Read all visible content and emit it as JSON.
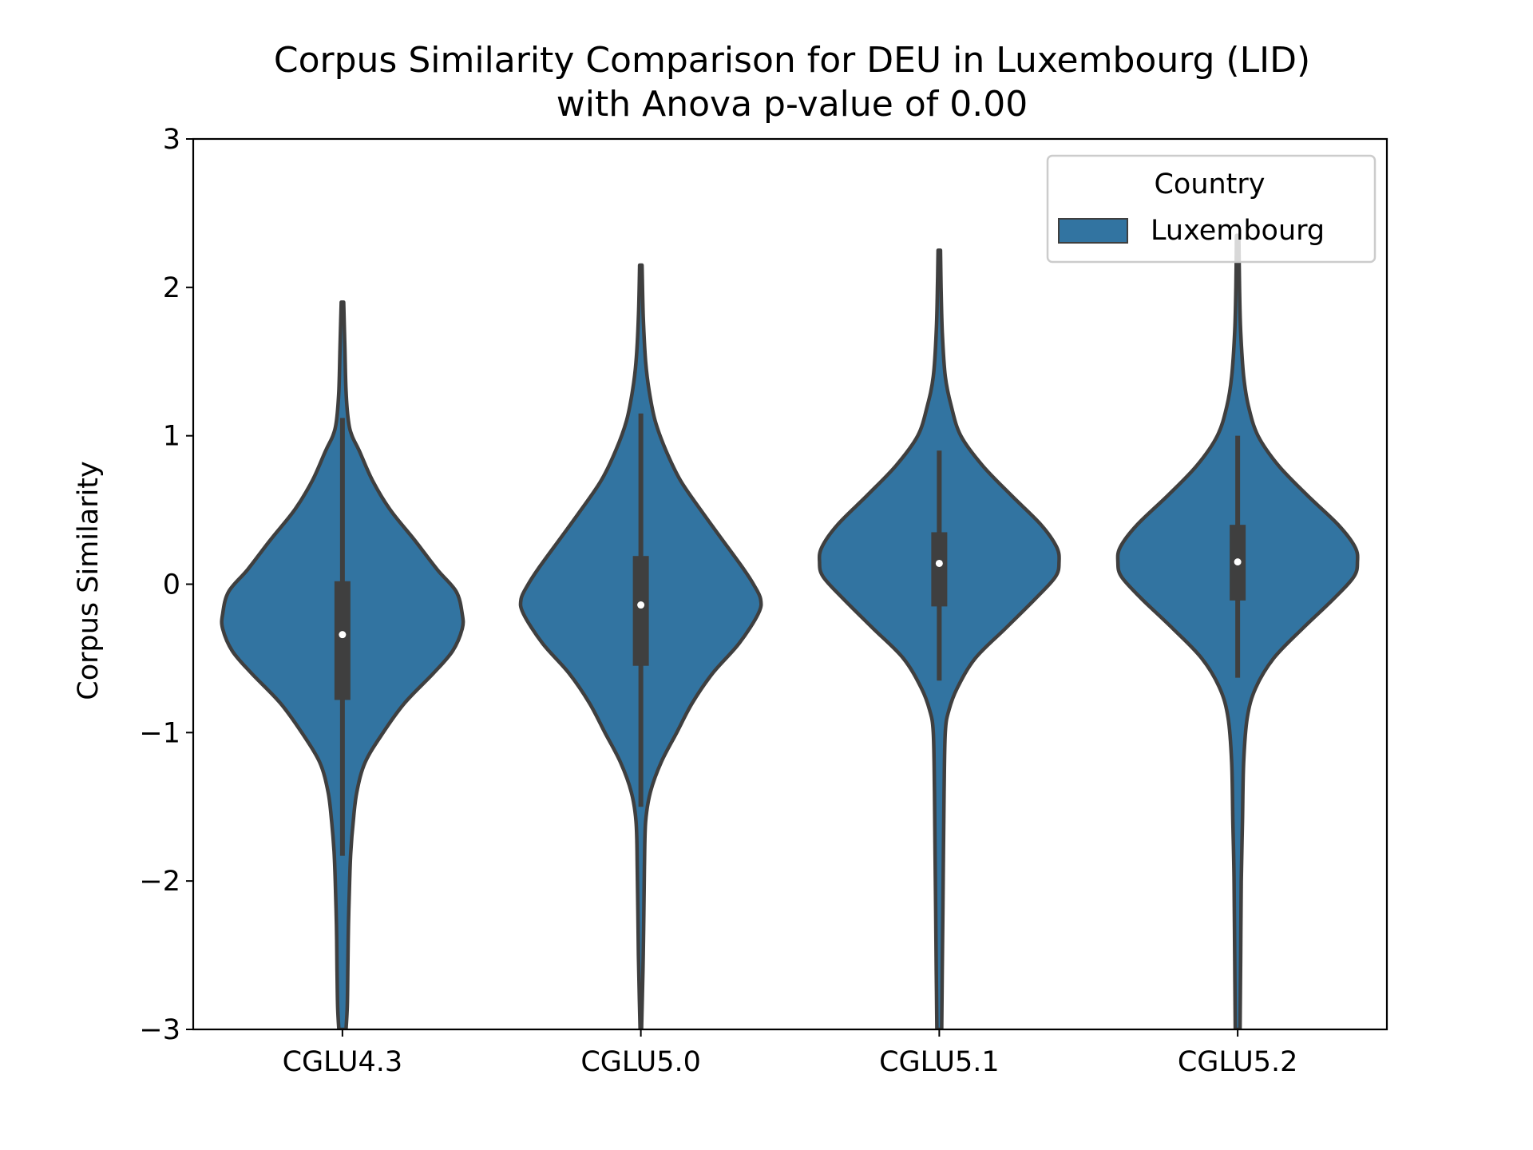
{
  "chart_data": {
    "type": "violin",
    "title": "Corpus Similarity Comparison for DEU in Luxembourg (LID)",
    "subtitle": "with Anova p-value of 0.00",
    "xlabel": "",
    "ylabel": "Corpus Similarity",
    "ylim": [
      -3,
      3
    ],
    "yticks": [
      -3,
      -2,
      -1,
      0,
      1,
      2,
      3
    ],
    "ytick_labels": [
      "−3",
      "−2",
      "−1",
      "0",
      "1",
      "2",
      "3"
    ],
    "categories": [
      "CGLU4.3",
      "CGLU5.0",
      "CGLU5.1",
      "CGLU5.2"
    ],
    "legend": {
      "title": "Country",
      "entries": [
        "Luxembourg"
      ],
      "position": "top-right"
    },
    "colors": {
      "violin": "#3274a1",
      "outline": "#3f3f3f",
      "box": "#3f3f3f",
      "median": "#ffffff"
    },
    "grid": false,
    "series": [
      {
        "name": "Luxembourg",
        "violins": [
          {
            "category": "CGLU4.3",
            "median": -0.34,
            "q1": -0.78,
            "q3": 0.02,
            "whisker_low": -1.83,
            "whisker_high": 1.12,
            "density": [
              [
                1.9,
                0.01
              ],
              [
                1.6,
                0.02
              ],
              [
                1.3,
                0.03
              ],
              [
                1.1,
                0.05
              ],
              [
                1.0,
                0.08
              ],
              [
                0.9,
                0.14
              ],
              [
                0.7,
                0.25
              ],
              [
                0.5,
                0.4
              ],
              [
                0.3,
                0.6
              ],
              [
                0.1,
                0.79
              ],
              [
                -0.05,
                0.95
              ],
              [
                -0.2,
                1.0
              ],
              [
                -0.3,
                1.0
              ],
              [
                -0.45,
                0.92
              ],
              [
                -0.6,
                0.76
              ],
              [
                -0.8,
                0.52
              ],
              [
                -1.0,
                0.34
              ],
              [
                -1.2,
                0.19
              ],
              [
                -1.4,
                0.12
              ],
              [
                -1.6,
                0.09
              ],
              [
                -1.8,
                0.07
              ],
              [
                -2.0,
                0.06
              ],
              [
                -2.3,
                0.05
              ],
              [
                -2.6,
                0.045
              ],
              [
                -2.85,
                0.04
              ],
              [
                -3.0,
                0.03
              ]
            ]
          },
          {
            "category": "CGLU5.0",
            "median": -0.14,
            "q1": -0.55,
            "q3": 0.19,
            "whisker_low": -1.5,
            "whisker_high": 1.15,
            "density": [
              [
                2.15,
                0.01
              ],
              [
                1.8,
                0.02
              ],
              [
                1.5,
                0.04
              ],
              [
                1.3,
                0.07
              ],
              [
                1.1,
                0.12
              ],
              [
                0.9,
                0.21
              ],
              [
                0.7,
                0.33
              ],
              [
                0.5,
                0.5
              ],
              [
                0.3,
                0.68
              ],
              [
                0.1,
                0.86
              ],
              [
                0.0,
                0.94
              ],
              [
                -0.1,
                1.0
              ],
              [
                -0.2,
                0.98
              ],
              [
                -0.4,
                0.82
              ],
              [
                -0.6,
                0.6
              ],
              [
                -0.8,
                0.43
              ],
              [
                -1.0,
                0.3
              ],
              [
                -1.2,
                0.17
              ],
              [
                -1.4,
                0.08
              ],
              [
                -1.6,
                0.04
              ],
              [
                -1.9,
                0.03
              ],
              [
                -2.2,
                0.025
              ],
              [
                -2.5,
                0.02
              ],
              [
                -2.8,
                0.012
              ],
              [
                -3.0,
                0.006
              ]
            ]
          },
          {
            "category": "CGLU5.1",
            "median": 0.14,
            "q1": -0.15,
            "q3": 0.35,
            "whisker_low": -0.65,
            "whisker_high": 0.9,
            "density": [
              [
                2.25,
                0.01
              ],
              [
                2.0,
                0.015
              ],
              [
                1.7,
                0.025
              ],
              [
                1.4,
                0.05
              ],
              [
                1.2,
                0.1
              ],
              [
                1.0,
                0.18
              ],
              [
                0.8,
                0.36
              ],
              [
                0.6,
                0.6
              ],
              [
                0.4,
                0.85
              ],
              [
                0.25,
                0.98
              ],
              [
                0.15,
                1.0
              ],
              [
                0.05,
                0.97
              ],
              [
                -0.1,
                0.8
              ],
              [
                -0.3,
                0.55
              ],
              [
                -0.5,
                0.3
              ],
              [
                -0.7,
                0.15
              ],
              [
                -0.85,
                0.08
              ],
              [
                -1.0,
                0.05
              ],
              [
                -1.4,
                0.04
              ],
              [
                -1.8,
                0.035
              ],
              [
                -2.2,
                0.03
              ],
              [
                -2.6,
                0.025
              ],
              [
                -3.0,
                0.02
              ]
            ]
          },
          {
            "category": "CGLU5.2",
            "median": 0.15,
            "q1": -0.11,
            "q3": 0.4,
            "whisker_low": -0.63,
            "whisker_high": 1.0,
            "density": [
              [
                2.35,
                0.01
              ],
              [
                2.0,
                0.015
              ],
              [
                1.7,
                0.025
              ],
              [
                1.4,
                0.05
              ],
              [
                1.2,
                0.09
              ],
              [
                1.0,
                0.17
              ],
              [
                0.8,
                0.34
              ],
              [
                0.6,
                0.58
              ],
              [
                0.4,
                0.84
              ],
              [
                0.25,
                0.98
              ],
              [
                0.15,
                1.0
              ],
              [
                0.05,
                0.97
              ],
              [
                -0.1,
                0.8
              ],
              [
                -0.3,
                0.54
              ],
              [
                -0.5,
                0.3
              ],
              [
                -0.7,
                0.15
              ],
              [
                -0.9,
                0.08
              ],
              [
                -1.2,
                0.05
              ],
              [
                -1.6,
                0.04
              ],
              [
                -2.0,
                0.03
              ],
              [
                -2.5,
                0.025
              ],
              [
                -3.0,
                0.02
              ]
            ]
          }
        ]
      }
    ]
  }
}
